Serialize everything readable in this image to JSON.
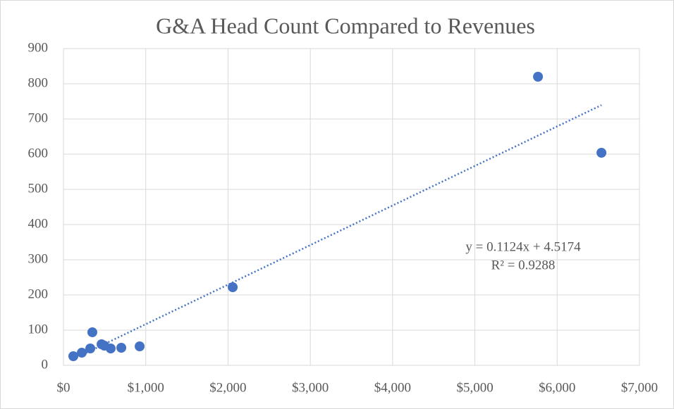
{
  "chart_data": {
    "type": "scatter",
    "title": "G&A Head Count Compared to Revenues",
    "series": [
      {
        "color": "#4472c4",
        "x": [
          120,
          223,
          326,
          351,
          463,
          497,
          574,
          703,
          926,
          2057,
          5767,
          6538
        ],
        "values": [
          26,
          36,
          48,
          94,
          60,
          56,
          48,
          50,
          54,
          222,
          820,
          604
        ]
      }
    ],
    "trendline": {
      "slope": 0.1124,
      "intercept": 4.5174,
      "equation": "y = 0.1124x + 4.5174",
      "r2": "R² = 0.9288"
    },
    "xlim": [
      0,
      7000
    ],
    "xticks": [
      {
        "value": 0,
        "label": "$0"
      },
      {
        "value": 1000,
        "label": "$1,000"
      },
      {
        "value": 2000,
        "label": "$2,000"
      },
      {
        "value": 3000,
        "label": "$3,000"
      },
      {
        "value": 4000,
        "label": "$4,000"
      },
      {
        "value": 5000,
        "label": "$5,000"
      },
      {
        "value": 6000,
        "label": "$6,000"
      },
      {
        "value": 7000,
        "label": "$7,000"
      }
    ],
    "ylim": [
      0,
      900
    ],
    "yticks": [
      0,
      100,
      200,
      300,
      400,
      500,
      600,
      700,
      800,
      900
    ],
    "grid": true
  }
}
